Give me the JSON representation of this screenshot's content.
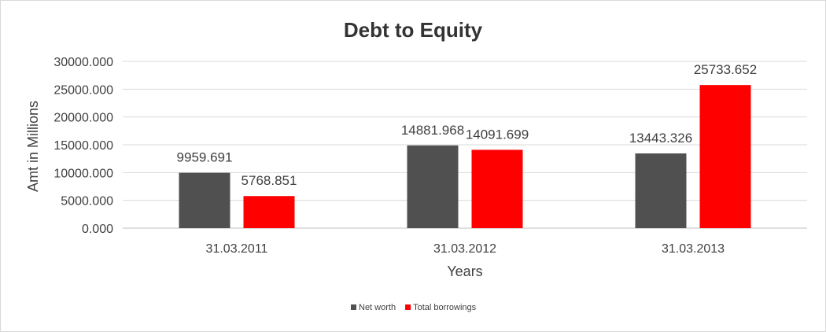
{
  "chart_data": {
    "type": "bar",
    "title": "Debt to Equity",
    "xlabel": "Years",
    "ylabel": "Amt in Millions",
    "categories": [
      "31.03.2011",
      "31.03.2012",
      "31.03.2013"
    ],
    "series": [
      {
        "name": "Net worth",
        "color": "#505050",
        "values": [
          9959.691,
          14881.968,
          13443.326
        ],
        "labels": [
          "9959.691",
          "14881.968",
          "13443.326"
        ]
      },
      {
        "name": "Total borrowings",
        "color": "#ff0000",
        "values": [
          5768.851,
          14091.699,
          25733.652
        ],
        "labels": [
          "5768.851",
          "14091.699",
          "25733.652"
        ]
      }
    ],
    "ylim": [
      0,
      30000
    ],
    "yticks": [
      0,
      5000,
      10000,
      15000,
      20000,
      25000,
      30000
    ],
    "ytick_labels": [
      "0.000",
      "5000.000",
      "10000.000",
      "15000.000",
      "20000.000",
      "25000.000",
      "30000.000"
    ],
    "grid": true,
    "legend_position": "bottom"
  }
}
